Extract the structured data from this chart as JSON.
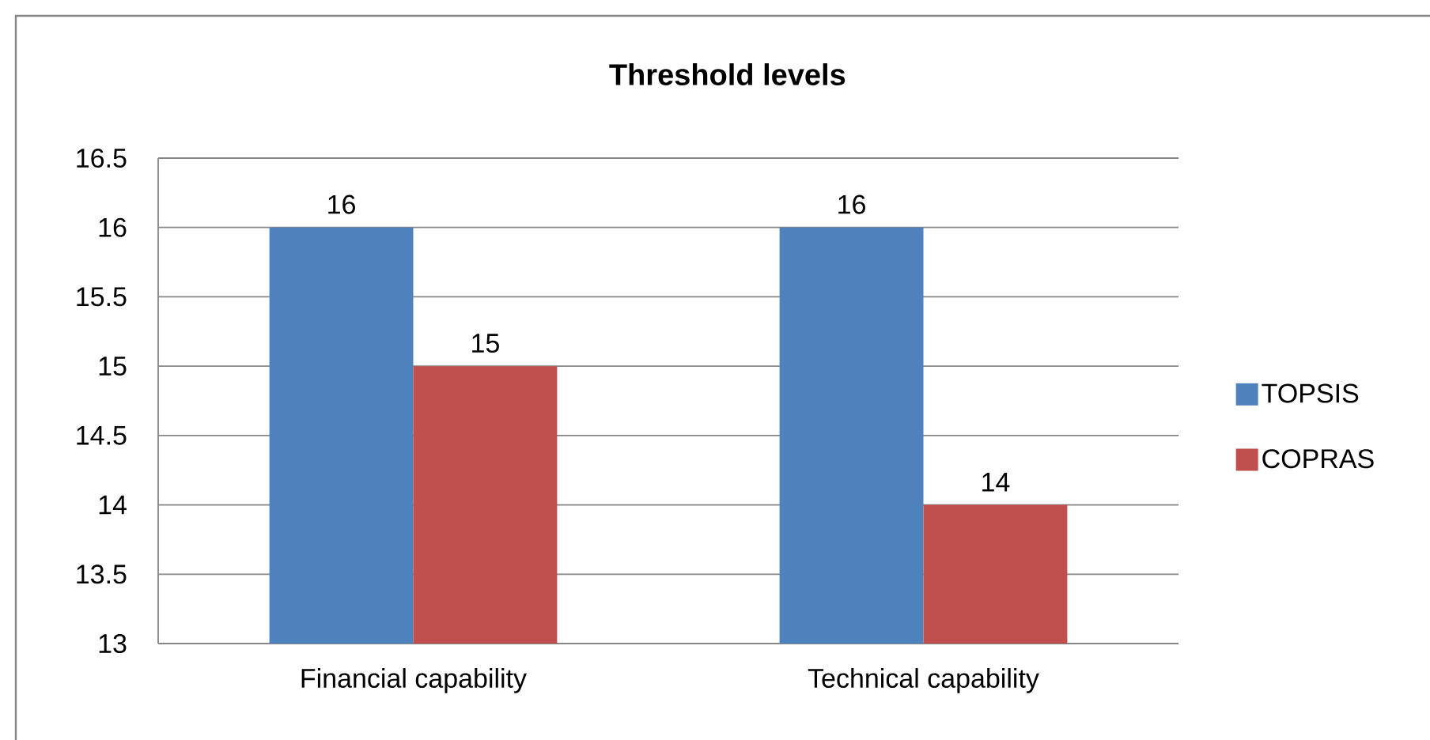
{
  "chart_data": {
    "type": "bar",
    "title": "Threshold levels",
    "categories": [
      "Financial capability",
      "Technical capability"
    ],
    "series": [
      {
        "name": "TOPSIS",
        "color": "#4f81bd",
        "values": [
          16,
          16
        ]
      },
      {
        "name": "COPRAS",
        "color": "#c0504d",
        "values": [
          15,
          14
        ]
      }
    ],
    "ylim": [
      13,
      16.5
    ],
    "yticks": [
      13,
      13.5,
      14,
      14.5,
      15,
      15.5,
      16,
      16.5
    ],
    "grid": "y",
    "legend": "right",
    "data_labels": true
  }
}
